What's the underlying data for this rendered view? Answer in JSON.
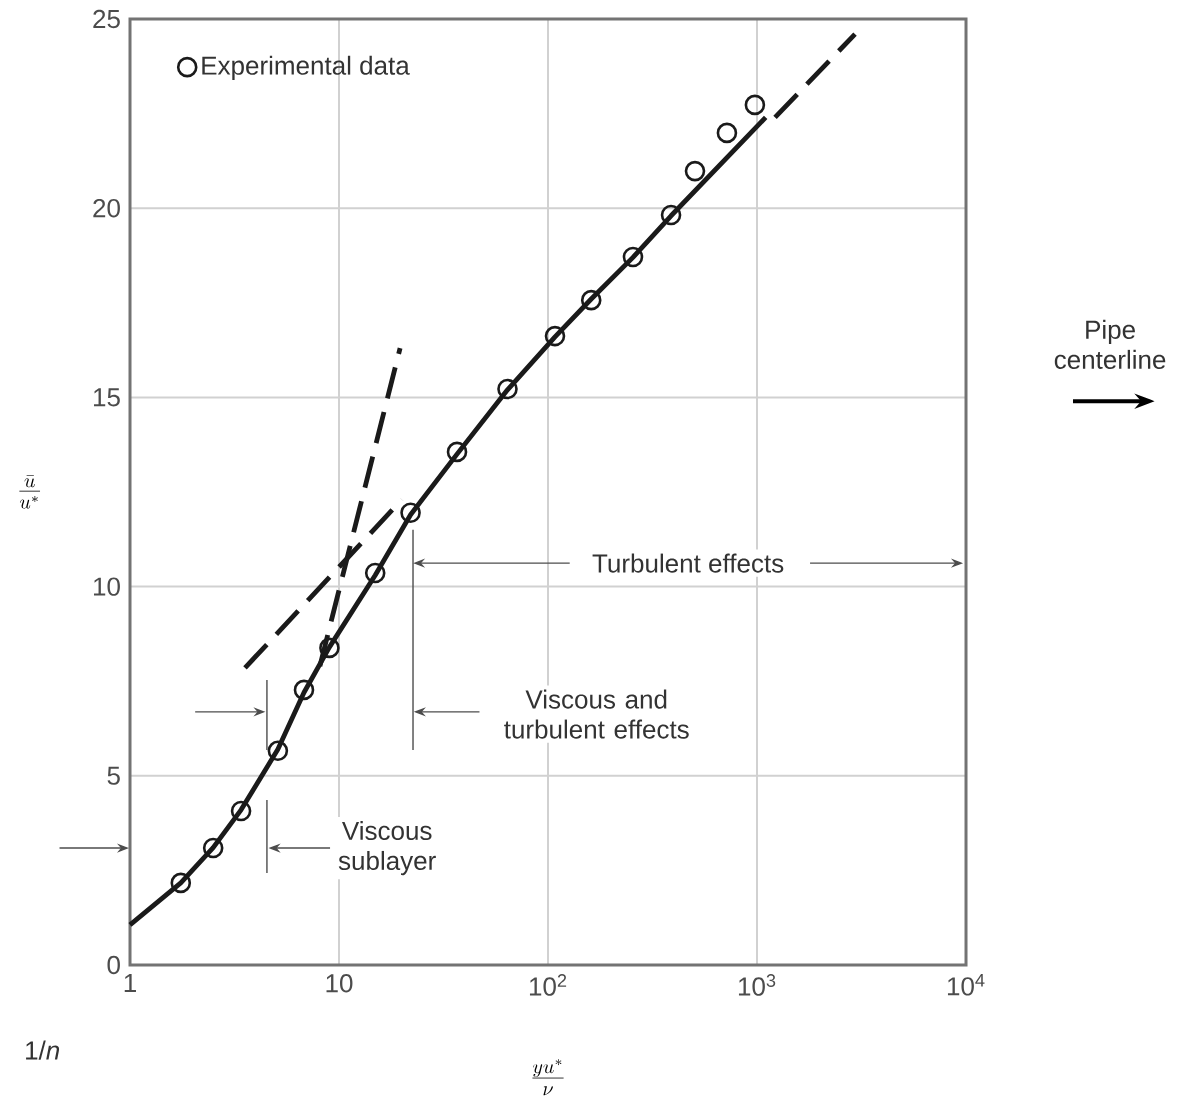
{
  "chart_data": {
    "type": "line",
    "xlabel": "\\frac{yu^*}{\\nu}",
    "ylabel": "\\frac{\\bar{u}}{u^*}",
    "log": "x",
    "grid": true,
    "legend": "top left",
    "xlim": [
      1,
      10000
    ],
    "ylim": [
      0,
      25
    ],
    "xticks": [
      1,
      10,
      {
        "value": 100,
        "label": "10$^{2}$"
      },
      {
        "value": 1000,
        "label": "10$^{3}$"
      },
      {
        "value": 10000,
        "label": "10$^{4}$"
      }
    ],
    "yticks": [
      0,
      5,
      10,
      15,
      20,
      25
    ],
    "series": [
      {
        "color": "#1a1a1a",
        "line_style": "solid",
        "marker": "none",
        "x": [
          1,
          1.75,
          2.5,
          3.4,
          5.1,
          6.8,
          9,
          14.9,
          22,
          36.7,
          64,
          108,
          161,
          255,
          388,
          1100
        ],
        "values": [
          1.06,
          2.17,
          3.1,
          4.1,
          5.7,
          7.2,
          8.4,
          10.3,
          11.9,
          13.5,
          15.2,
          16.6,
          17.6,
          18.7,
          19.8,
          22.4
        ]
      },
      {
        "color": "#1a1a1a",
        "line_style": "dashed",
        "marker": "none",
        "x": [
          3.55,
          20,
          400,
          1220,
          2944
        ],
        "values": [
          7.85,
          12.3,
          null,
          22.4,
          24.6
        ]
      },
      {
        "color": "#1a1a1a",
        "line_style": "dashed",
        "marker": "none",
        "x": [
          8.1,
          19.6
        ],
        "values": [
          7.9,
          16.3
        ]
      },
      {
        "type": "scatter",
        "name": "Experimental data",
        "color": "#1a1a1a",
        "marker": "circle",
        "x": [
          1.75,
          2.5,
          3.4,
          5.1,
          6.8,
          9,
          14.9,
          22,
          36.7,
          64,
          108,
          161,
          255,
          388,
          505,
          718,
          977
        ],
        "values": [
          2.17,
          3.09,
          4.07,
          5.66,
          7.27,
          8.38,
          10.36,
          11.95,
          13.56,
          15.22,
          16.62,
          17.57,
          18.71,
          19.82,
          20.98,
          21.99,
          22.73
        ]
      }
    ],
    "annotations": [
      "Turbulent effects",
      "Viscous and turbulent effects",
      "Viscous sublayer",
      "Pipe centerline",
      "1/*n*"
    ]
  }
}
